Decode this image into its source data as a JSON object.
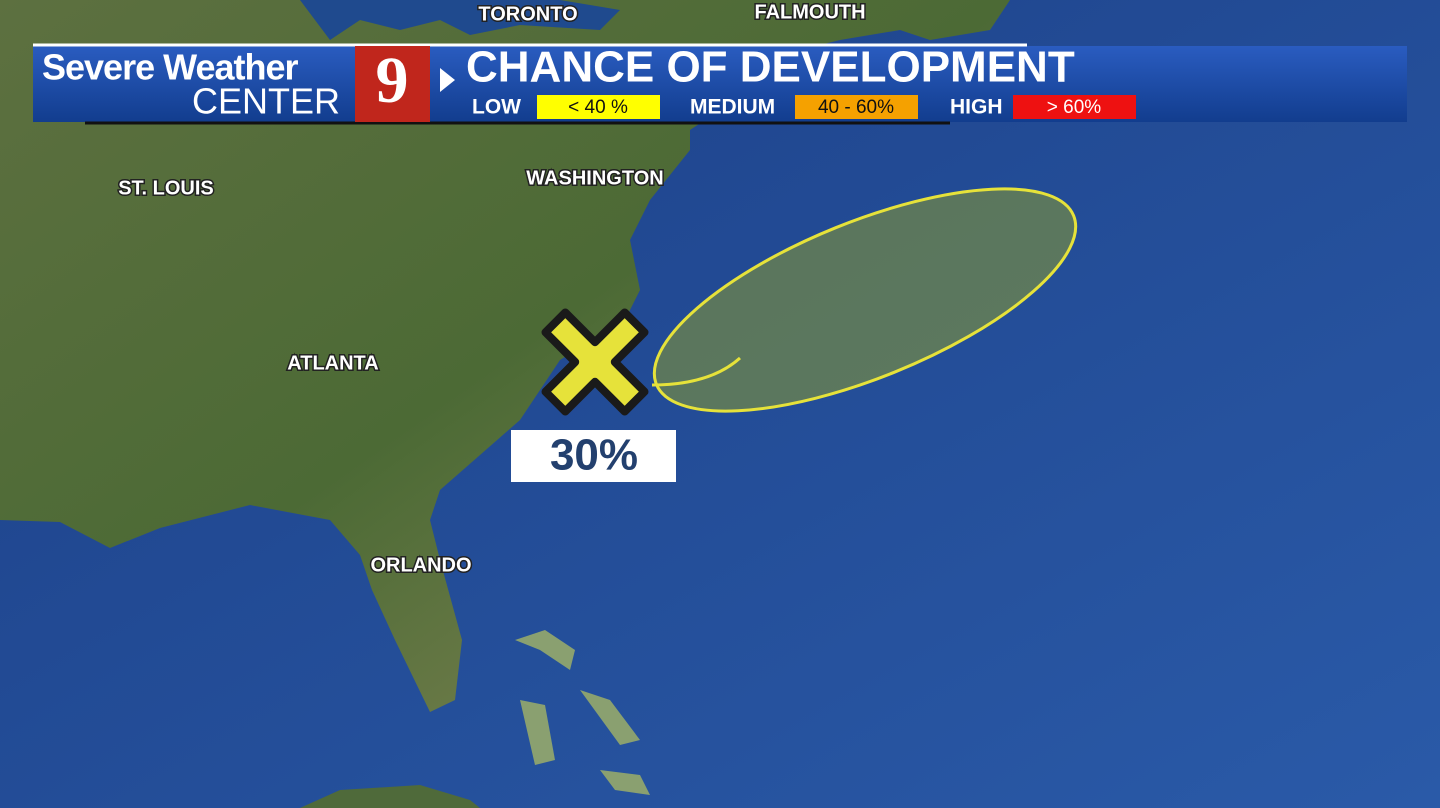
{
  "header": {
    "brand_line1": "Severe Weather",
    "brand_line2": "CENTER",
    "logo": "9",
    "title": "CHANCE OF DEVELOPMENT",
    "legend": [
      {
        "name": "LOW",
        "range": "< 40 %",
        "color": "#ffff00"
      },
      {
        "name": "MEDIUM",
        "range": "40 - 60%",
        "color": "#f5a100"
      },
      {
        "name": "HIGH",
        "range": "> 60%",
        "color": "#ee1111"
      }
    ]
  },
  "cities": [
    "TORONTO",
    "FALMOUTH",
    "ST. LOUIS",
    "WASHINGTON",
    "ATLANTA",
    "ORLANDO"
  ],
  "outlook": {
    "label": "30%",
    "color": "#e6e23a"
  }
}
